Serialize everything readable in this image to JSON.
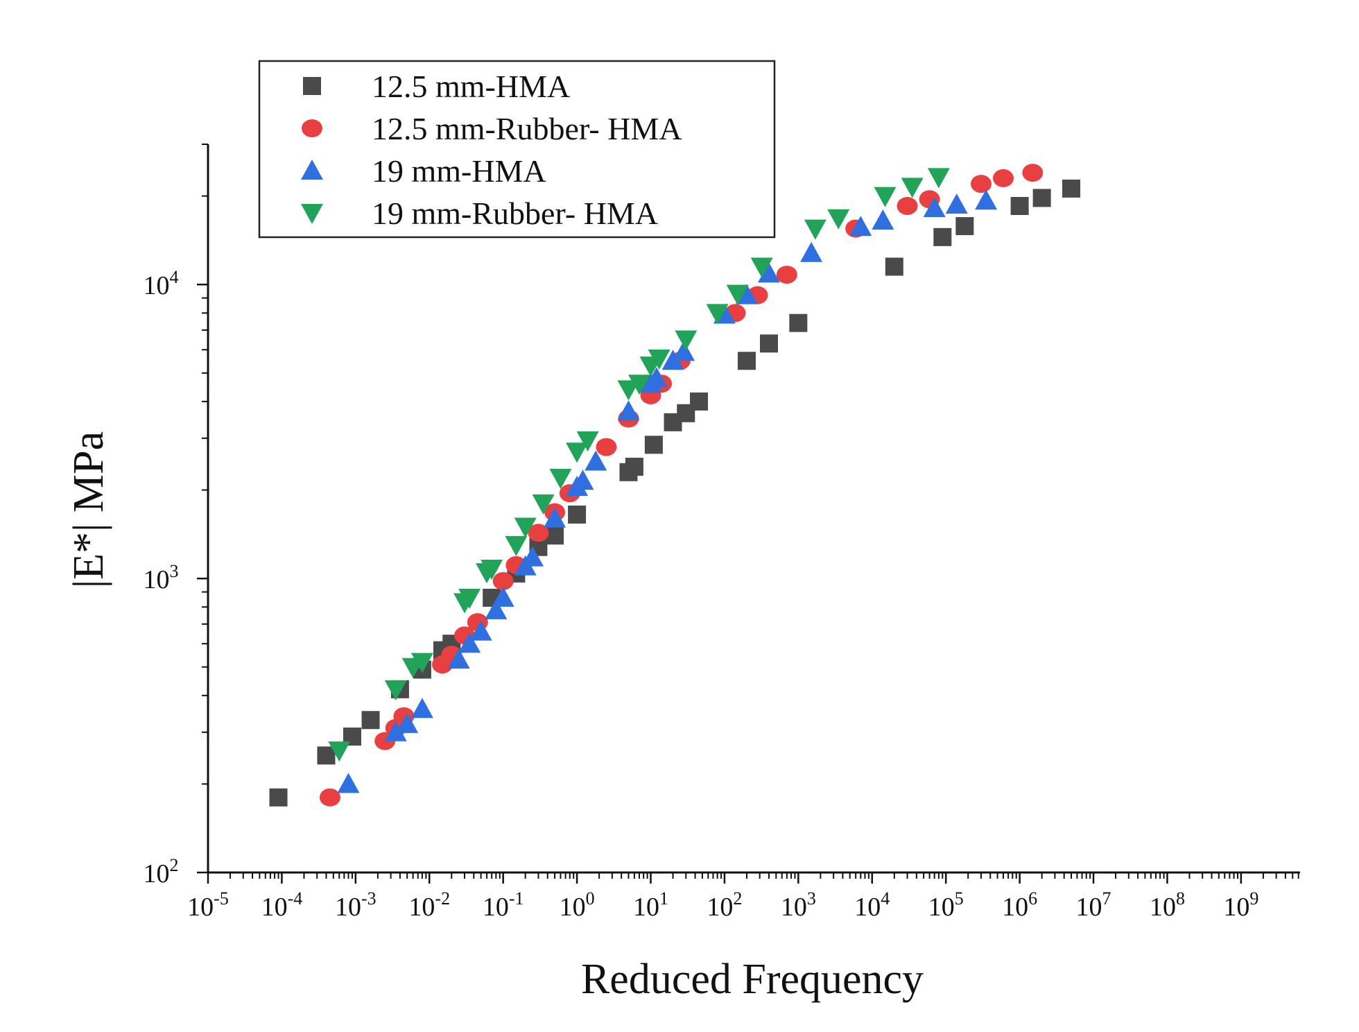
{
  "chart_data": {
    "type": "scatter",
    "title": "",
    "xlabel": "Reduced Frequency",
    "ylabel": "|E*| MPa",
    "x_scale": "log",
    "y_scale": "log",
    "xlim": [
      1e-05,
      1000000000.0
    ],
    "ylim": [
      100,
      30000
    ],
    "x_ticks": [
      {
        "value": 1e-05,
        "mantissa": "10",
        "exp": "-5"
      },
      {
        "value": 0.0001,
        "mantissa": "10",
        "exp": "-4"
      },
      {
        "value": 0.001,
        "mantissa": "10",
        "exp": "-3"
      },
      {
        "value": 0.01,
        "mantissa": "10",
        "exp": "-2"
      },
      {
        "value": 0.1,
        "mantissa": "10",
        "exp": "-1"
      },
      {
        "value": 1,
        "mantissa": "10",
        "exp": "0"
      },
      {
        "value": 10,
        "mantissa": "10",
        "exp": "1"
      },
      {
        "value": 100,
        "mantissa": "10",
        "exp": "2"
      },
      {
        "value": 1000,
        "mantissa": "10",
        "exp": "3"
      },
      {
        "value": 10000,
        "mantissa": "10",
        "exp": "4"
      },
      {
        "value": 100000,
        "mantissa": "10",
        "exp": "5"
      },
      {
        "value": 1000000,
        "mantissa": "10",
        "exp": "6"
      },
      {
        "value": 10000000,
        "mantissa": "10",
        "exp": "7"
      },
      {
        "value": 100000000,
        "mantissa": "10",
        "exp": "8"
      },
      {
        "value": 1000000000,
        "mantissa": "10",
        "exp": "9"
      }
    ],
    "y_ticks": [
      {
        "value": 100,
        "mantissa": "10",
        "exp": "2"
      },
      {
        "value": 1000,
        "mantissa": "10",
        "exp": "3"
      },
      {
        "value": 10000,
        "mantissa": "10",
        "exp": "4"
      }
    ],
    "legend_position": "top-left",
    "series": [
      {
        "name": "12.5 mm-HMA",
        "marker": "square",
        "color": "#4a4a4a",
        "points": [
          [
            9e-05,
            180
          ],
          [
            0.0004,
            250
          ],
          [
            0.0009,
            290
          ],
          [
            0.0016,
            330
          ],
          [
            0.004,
            420
          ],
          [
            0.008,
            490
          ],
          [
            0.015,
            570
          ],
          [
            0.02,
            600
          ],
          [
            0.07,
            860
          ],
          [
            0.15,
            1040
          ],
          [
            0.3,
            1280
          ],
          [
            0.5,
            1400
          ],
          [
            1,
            1650
          ],
          [
            5,
            2300
          ],
          [
            6,
            2400
          ],
          [
            11,
            2850
          ],
          [
            20,
            3400
          ],
          [
            30,
            3650
          ],
          [
            45,
            4000
          ],
          [
            200,
            5500
          ],
          [
            400,
            6300
          ],
          [
            1000,
            7400
          ],
          [
            20000,
            11500
          ],
          [
            90000,
            14500
          ],
          [
            180000,
            15800
          ],
          [
            1000000,
            18500
          ],
          [
            2000000,
            19700
          ],
          [
            5000000,
            21200
          ]
        ]
      },
      {
        "name": "12.5 mm-Rubber- HMA",
        "marker": "circle",
        "color": "#e84040",
        "points": [
          [
            0.00045,
            180
          ],
          [
            0.0025,
            280
          ],
          [
            0.0035,
            310
          ],
          [
            0.0045,
            340
          ],
          [
            0.015,
            510
          ],
          [
            0.02,
            550
          ],
          [
            0.03,
            640
          ],
          [
            0.045,
            710
          ],
          [
            0.1,
            980
          ],
          [
            0.15,
            1110
          ],
          [
            0.3,
            1430
          ],
          [
            0.5,
            1680
          ],
          [
            0.8,
            1950
          ],
          [
            2.5,
            2800
          ],
          [
            5,
            3500
          ],
          [
            10,
            4200
          ],
          [
            14,
            4600
          ],
          [
            25,
            5500
          ],
          [
            140,
            8000
          ],
          [
            280,
            9200
          ],
          [
            700,
            10800
          ],
          [
            6000,
            15500
          ],
          [
            30000,
            18500
          ],
          [
            60000,
            19500
          ],
          [
            300000,
            22000
          ],
          [
            600000,
            23000
          ],
          [
            1500000,
            24000
          ]
        ]
      },
      {
        "name": "19 mm-HMA",
        "marker": "triangle-up",
        "color": "#2f6fe0",
        "points": [
          [
            0.0008,
            200
          ],
          [
            0.0035,
            300
          ],
          [
            0.005,
            320
          ],
          [
            0.008,
            360
          ],
          [
            0.025,
            530
          ],
          [
            0.035,
            600
          ],
          [
            0.05,
            660
          ],
          [
            0.08,
            780
          ],
          [
            0.1,
            860
          ],
          [
            0.2,
            1100
          ],
          [
            0.25,
            1180
          ],
          [
            0.5,
            1600
          ],
          [
            1,
            2050
          ],
          [
            1.2,
            2150
          ],
          [
            1.8,
            2500
          ],
          [
            5,
            3700
          ],
          [
            10,
            4600
          ],
          [
            12,
            4800
          ],
          [
            20,
            5500
          ],
          [
            28,
            5900
          ],
          [
            100,
            7900
          ],
          [
            200,
            9200
          ],
          [
            400,
            10900
          ],
          [
            1500,
            12800
          ],
          [
            7000,
            15700
          ],
          [
            14000,
            16500
          ],
          [
            70000,
            18200
          ],
          [
            140000,
            18700
          ],
          [
            350000,
            19300
          ]
        ]
      },
      {
        "name": "19 mm-Rubber- HMA",
        "marker": "triangle-down",
        "color": "#22a35a",
        "points": [
          [
            0.0006,
            260
          ],
          [
            0.0035,
            420
          ],
          [
            0.006,
            500
          ],
          [
            0.008,
            520
          ],
          [
            0.03,
            830
          ],
          [
            0.035,
            860
          ],
          [
            0.06,
            1050
          ],
          [
            0.07,
            1080
          ],
          [
            0.15,
            1300
          ],
          [
            0.2,
            1500
          ],
          [
            0.35,
            1800
          ],
          [
            0.6,
            2200
          ],
          [
            1,
            2700
          ],
          [
            1.4,
            2950
          ],
          [
            5,
            4400
          ],
          [
            7,
            4600
          ],
          [
            10,
            5300
          ],
          [
            13,
            5600
          ],
          [
            30,
            6500
          ],
          [
            80,
            8000
          ],
          [
            150,
            9300
          ],
          [
            320,
            11500
          ],
          [
            1700,
            15500
          ],
          [
            3500,
            16800
          ],
          [
            15000,
            20000
          ],
          [
            35000,
            21500
          ],
          [
            80000,
            23200
          ]
        ]
      }
    ]
  }
}
